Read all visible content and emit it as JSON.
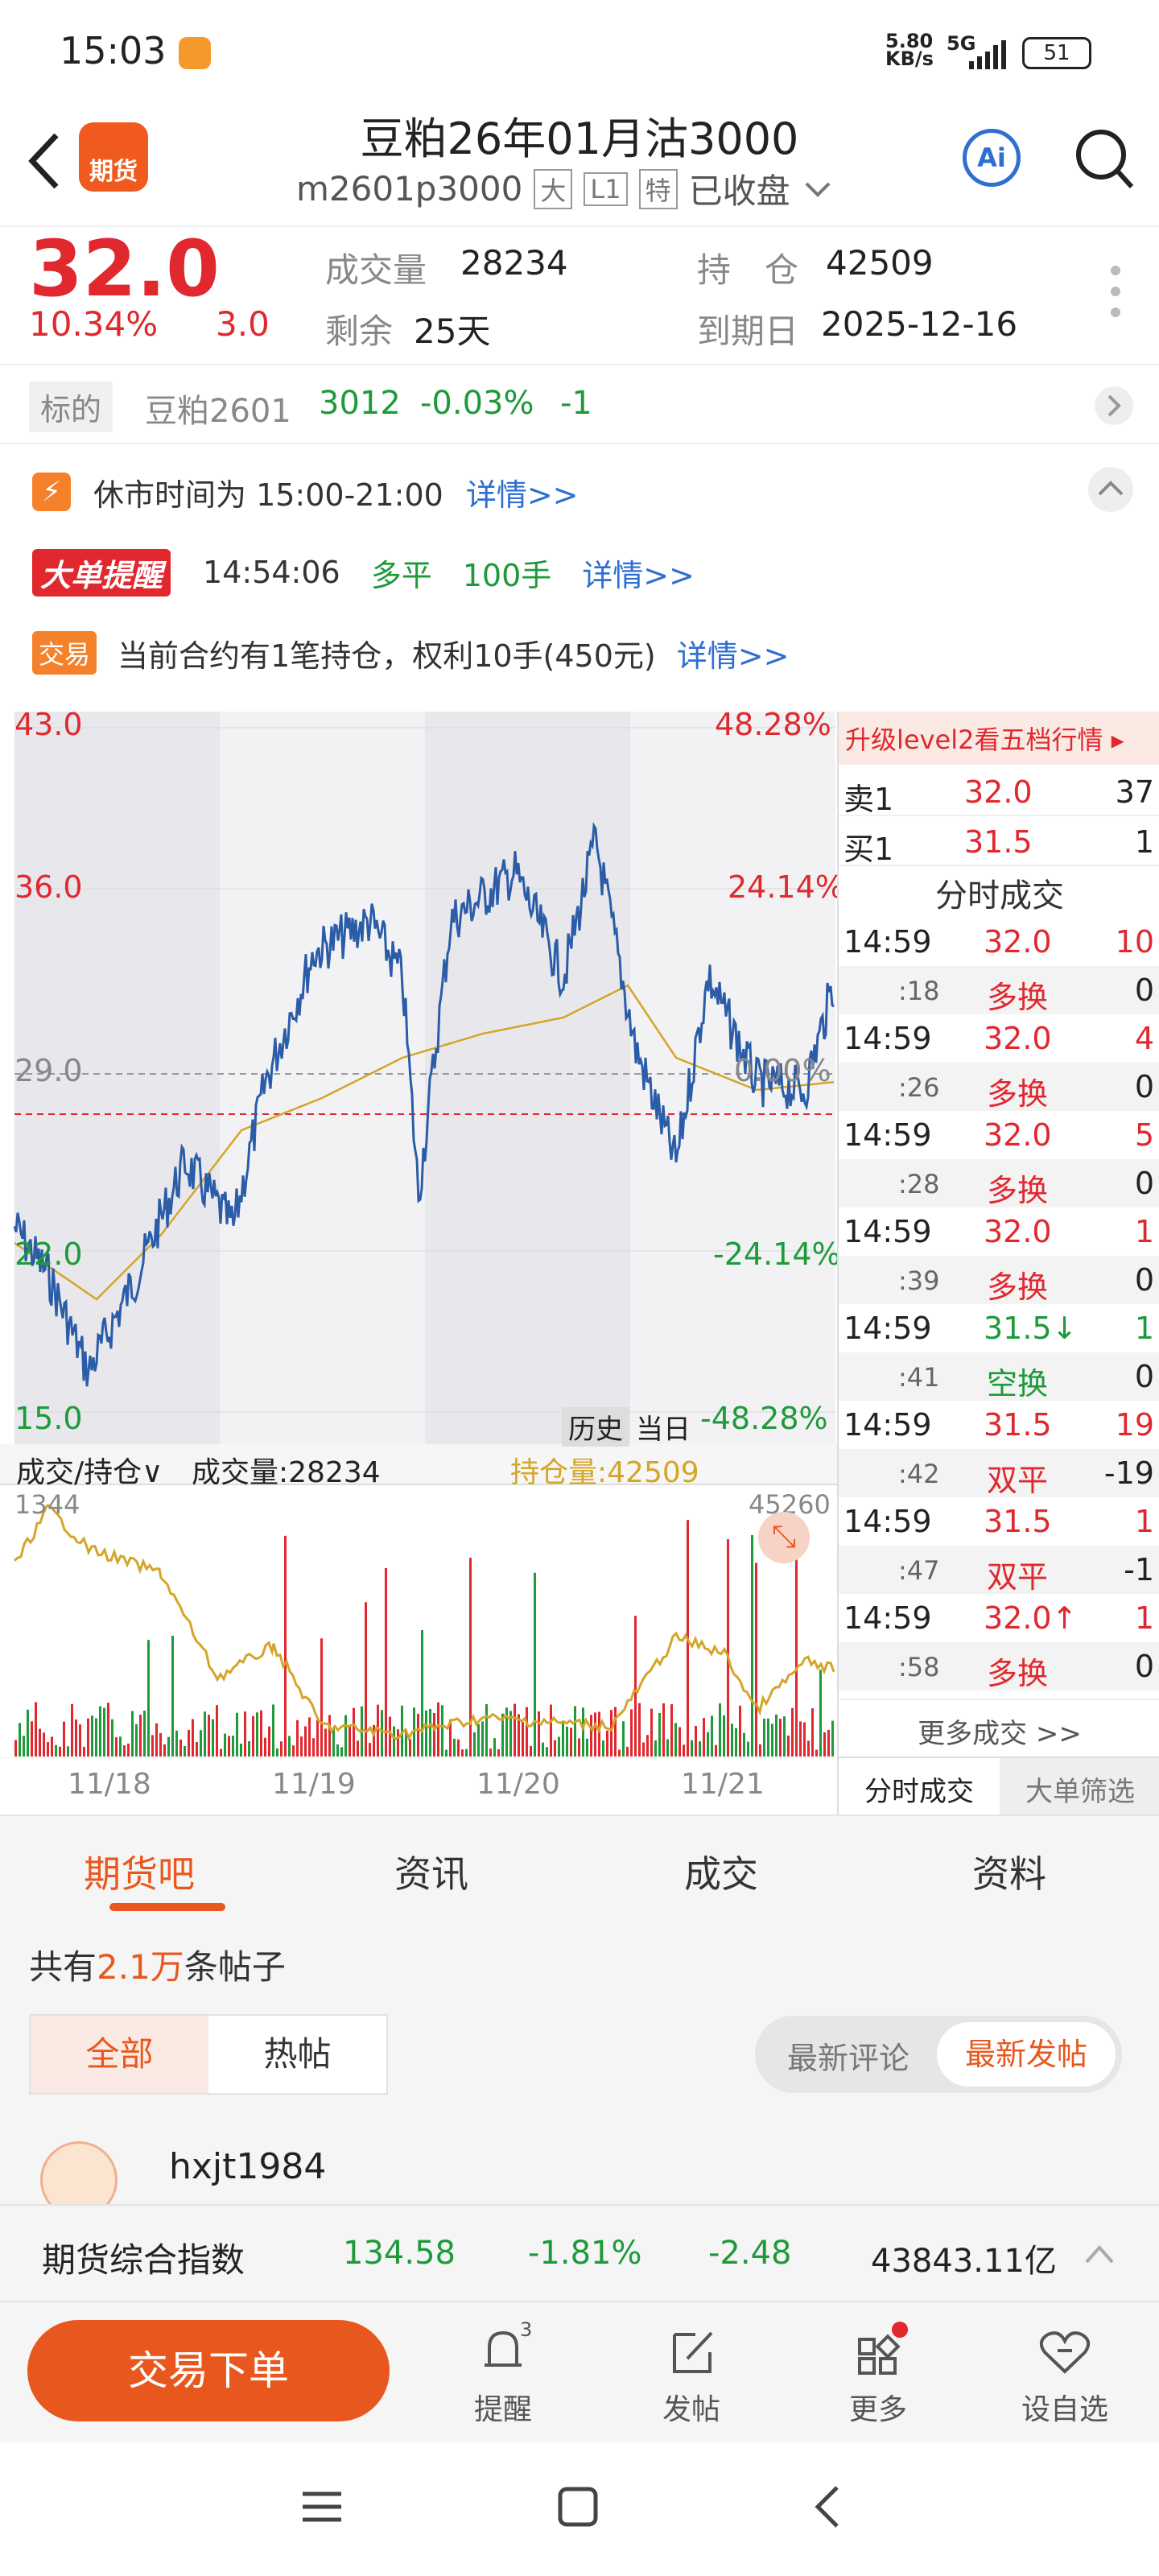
{
  "status": {
    "time": "15:03",
    "speed_top": "5.80",
    "speed_unit": "KB/s",
    "network": "5G",
    "battery": "51"
  },
  "header": {
    "title": "豆粕26年01月沽3000",
    "code": "m2601p3000",
    "badges": [
      "大",
      "L1",
      "特"
    ],
    "state": "已收盘",
    "logo_text": "期货",
    "ai_label": "Ai"
  },
  "quote": {
    "price": "32.0",
    "change_pct": "10.34%",
    "change": "3.0",
    "volume_label": "成交量",
    "volume": "28234",
    "oi_label": "持　仓",
    "oi": "42509",
    "remain_label": "剩余",
    "remain": "25天",
    "expiry_label": "到期日",
    "expiry": "2025-12-16"
  },
  "underlying": {
    "tag": "标的",
    "name": "豆粕2601",
    "price": "3012",
    "pct": "-0.03%",
    "chg": "-1"
  },
  "notices": {
    "break_text": "休市时间为 15:00-21:00",
    "detail": "详情>>",
    "big_tag_a": "大单",
    "big_tag_b": "提醒",
    "big_time": "14:54:06",
    "big_dir": "多平",
    "big_qty": "100手",
    "trade_tag": "交易",
    "trade_text": "当前合约有1笔持仓，权利10手(450元)"
  },
  "chart": {
    "y_left": [
      "43.0",
      "36.0",
      "29.0",
      "22.0",
      "15.0"
    ],
    "y_right": [
      "48.28%",
      "24.14%",
      "0.00%",
      "-24.14%",
      "-48.28%"
    ],
    "hist_btn": "历史",
    "today_btn": "当日",
    "vol_selector": "成交/持仓",
    "vol_label": "成交量:28234",
    "oi_label": "持仓量:42509",
    "vol_max": "1344",
    "oi_max": "45260",
    "dates": [
      "11/18",
      "11/19",
      "11/20",
      "11/21"
    ]
  },
  "trades": {
    "banner": "升级level2看五档行情 ▸",
    "ask_label": "卖1",
    "ask_price": "32.0",
    "ask_qty": "37",
    "bid_label": "买1",
    "bid_price": "31.5",
    "bid_qty": "1",
    "title": "分时成交",
    "rows": [
      {
        "time": "14:59",
        "sec": ":18",
        "price": "32.0",
        "qty": "10",
        "type": "多换",
        "oi": "0",
        "pc": "red",
        "tc": "red"
      },
      {
        "time": "14:59",
        "sec": ":26",
        "price": "32.0",
        "qty": "4",
        "type": "多换",
        "oi": "0",
        "pc": "red",
        "tc": "red"
      },
      {
        "time": "14:59",
        "sec": ":28",
        "price": "32.0",
        "qty": "5",
        "type": "多换",
        "oi": "0",
        "pc": "red",
        "tc": "red"
      },
      {
        "time": "14:59",
        "sec": ":39",
        "price": "32.0",
        "qty": "1",
        "type": "多换",
        "oi": "0",
        "pc": "red",
        "tc": "red"
      },
      {
        "time": "14:59",
        "sec": ":41",
        "price": "31.5↓",
        "qty": "1",
        "type": "空换",
        "oi": "0",
        "pc": "green",
        "tc": "green"
      },
      {
        "time": "14:59",
        "sec": ":42",
        "price": "31.5",
        "qty": "19",
        "type": "双平",
        "oi": "-19",
        "pc": "red",
        "tc": "red"
      },
      {
        "time": "14:59",
        "sec": ":47",
        "price": "31.5",
        "qty": "1",
        "type": "双平",
        "oi": "-1",
        "pc": "red",
        "tc": "red"
      },
      {
        "time": "14:59",
        "sec": ":58",
        "price": "32.0↑",
        "qty": "1",
        "type": "多换",
        "oi": "0",
        "pc": "red",
        "tc": "red"
      }
    ],
    "more": "更多成交 >>",
    "tab_a": "分时成交",
    "tab_b": "大单筛选"
  },
  "tabs": [
    "期货吧",
    "资讯",
    "成交",
    "资料"
  ],
  "posts": {
    "count_pre": "共有",
    "count": "2.1万",
    "count_post": "条帖子",
    "filter_all": "全部",
    "filter_hot": "热帖",
    "sort_a": "最新评论",
    "sort_b": "最新发帖",
    "author": "hxjt1984"
  },
  "index_bar": {
    "name": "期货综合指数",
    "value": "134.58",
    "pct": "-1.81%",
    "chg": "-2.48",
    "amount": "43843.11亿"
  },
  "bottom": {
    "order_btn": "交易下单",
    "remind": "提醒",
    "remind_badge": "3",
    "post": "发帖",
    "more": "更多",
    "watch": "设自选"
  },
  "colors": {
    "red": "#e0282e",
    "green": "#1e9a3a",
    "blue": "#2f6fd0",
    "orange": "#e8581e",
    "line": "#2a5ca8",
    "avg": "#d4a528"
  }
}
